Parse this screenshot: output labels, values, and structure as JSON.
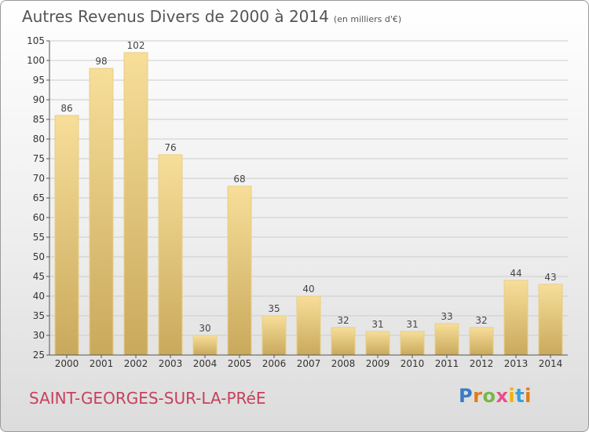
{
  "title": "Autres Revenus Divers de 2000 à 2014",
  "unit_note": "(en milliers d'€)",
  "commune": "SAINT-GEORGES-SUR-LA-PRéE",
  "logo": {
    "letters": [
      "P",
      "r",
      "o",
      "x",
      "i",
      "t",
      "i"
    ],
    "colors": [
      "#3a7cc1",
      "#e07b1a",
      "#7ab648",
      "#e94f8a",
      "#f0b400",
      "#3a9fd8",
      "#e07b1a"
    ]
  },
  "colors": {
    "commune": "#c7405c",
    "bar_top": "#f7de99",
    "bar_bottom": "#c9a95c",
    "bar_edge": "#e8cf85",
    "grid": "#cccccc",
    "axis": "#555555"
  },
  "chart_data": {
    "type": "bar",
    "categories": [
      "2000",
      "2001",
      "2002",
      "2003",
      "2004",
      "2005",
      "2006",
      "2007",
      "2008",
      "2009",
      "2010",
      "2011",
      "2012",
      "2013",
      "2014"
    ],
    "values": [
      86,
      98,
      102,
      76,
      30,
      68,
      35,
      40,
      32,
      31,
      31,
      33,
      32,
      44,
      43
    ],
    "ylim": [
      25,
      105
    ],
    "yticks": [
      25,
      30,
      35,
      40,
      45,
      50,
      55,
      60,
      65,
      70,
      75,
      80,
      85,
      90,
      95,
      100,
      105
    ],
    "grid": true
  }
}
